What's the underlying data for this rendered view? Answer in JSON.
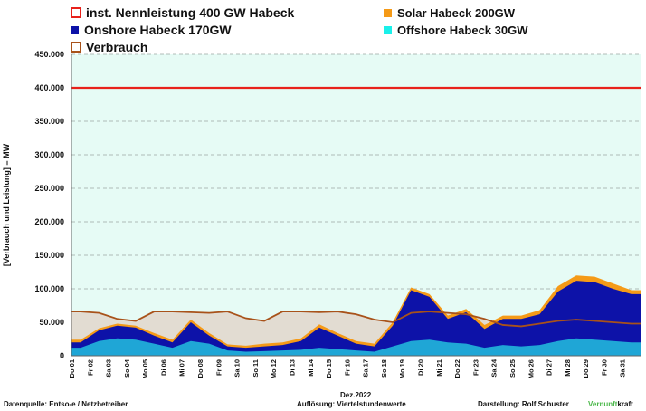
{
  "chart_data": {
    "type": "area",
    "xlabel": "Dez.2022",
    "ylabel": "[Verbrauch und Leistung] = MW",
    "ylim": [
      0,
      450000
    ],
    "y_ticks": [
      "0",
      "50.000",
      "100.000",
      "150.000",
      "200.000",
      "250.000",
      "300.000",
      "350.000",
      "400.000",
      "450.000"
    ],
    "categories": [
      "Do 01",
      "Fr 02",
      "Sa 03",
      "So 04",
      "Mo 05",
      "Di 06",
      "Mi 07",
      "Do 08",
      "Fr 09",
      "Sa 10",
      "So 11",
      "Mo 12",
      "Di 13",
      "Mi 14",
      "Do 15",
      "Fr 16",
      "Sa 17",
      "So 18",
      "Mo 19",
      "Di 20",
      "Mi 21",
      "Do 22",
      "Fr 23",
      "Sa 24",
      "So 25",
      "Mo 26",
      "Di 27",
      "Mi 28",
      "Do 29",
      "Fr 30",
      "Sa 31"
    ],
    "grid": "horizontal-dashed",
    "legend_position": "top",
    "series": [
      {
        "name": "inst. Nennleistung 400 GW Habeck",
        "kind": "line",
        "color": "#e8211b",
        "values": [
          400000,
          400000,
          400000,
          400000,
          400000,
          400000,
          400000,
          400000,
          400000,
          400000,
          400000,
          400000,
          400000,
          400000,
          400000,
          400000,
          400000,
          400000,
          400000,
          400000,
          400000,
          400000,
          400000,
          400000,
          400000,
          400000,
          400000,
          400000,
          400000,
          400000,
          400000
        ]
      },
      {
        "name": "Offshore Habeck 30GW",
        "kind": "area",
        "color": "#1fa6d6",
        "values": [
          12000,
          22000,
          26000,
          24000,
          18000,
          12000,
          22000,
          18000,
          8000,
          6000,
          7000,
          8000,
          9000,
          12000,
          10000,
          8000,
          6000,
          14000,
          22000,
          24000,
          20000,
          18000,
          12000,
          16000,
          14000,
          16000,
          22000,
          26000,
          24000,
          22000,
          20000
        ]
      },
      {
        "name": "Onshore Habeck 170GW",
        "kind": "area",
        "color": "#0d12a8",
        "values": [
          20000,
          38000,
          45000,
          42000,
          30000,
          20000,
          50000,
          30000,
          14000,
          12000,
          14000,
          16000,
          22000,
          42000,
          30000,
          18000,
          14000,
          45000,
          98000,
          88000,
          55000,
          65000,
          40000,
          55000,
          55000,
          62000,
          96000,
          112000,
          110000,
          100000,
          92000
        ]
      },
      {
        "name": "Solar Habeck 200GW",
        "kind": "area",
        "color": "#f59a17",
        "values": [
          24000,
          41000,
          48000,
          45000,
          34000,
          24000,
          54000,
          34000,
          17000,
          15000,
          18000,
          20000,
          26000,
          47000,
          34000,
          22000,
          18000,
          50000,
          102000,
          92000,
          60000,
          70000,
          46000,
          60000,
          60000,
          68000,
          104000,
          120000,
          118000,
          108000,
          98000
        ]
      },
      {
        "name": "Verbrauch",
        "kind": "line",
        "color": "#a8521a",
        "values": [
          66000,
          64000,
          55000,
          52000,
          66000,
          66000,
          65000,
          64000,
          66000,
          56000,
          52000,
          66000,
          66000,
          65000,
          66000,
          62000,
          54000,
          50000,
          64000,
          66000,
          64000,
          62000,
          55000,
          46000,
          44000,
          48000,
          52000,
          54000,
          52000,
          50000,
          48000
        ]
      }
    ]
  },
  "legend": {
    "nennleistung": "inst. Nennleistung 400 GW Habeck",
    "solar": "Solar Habeck 200GW",
    "onshore": "Onshore Habeck 170GW",
    "offshore": "Offshore Habeck 30GW",
    "verbrauch": "Verbrauch"
  },
  "footer": {
    "source": "Datenquelle: Entso-e  / Netzbetreiber",
    "resolution": "Auflösung: Viertelstundenwerte",
    "author": "Darstellung:  Rolf Schuster",
    "brand_green": "Vernunft",
    "brand_black": "kraft"
  },
  "colors": {
    "plot_background": "#e6fbf5",
    "consumption_fill": "#e2dcd2"
  }
}
